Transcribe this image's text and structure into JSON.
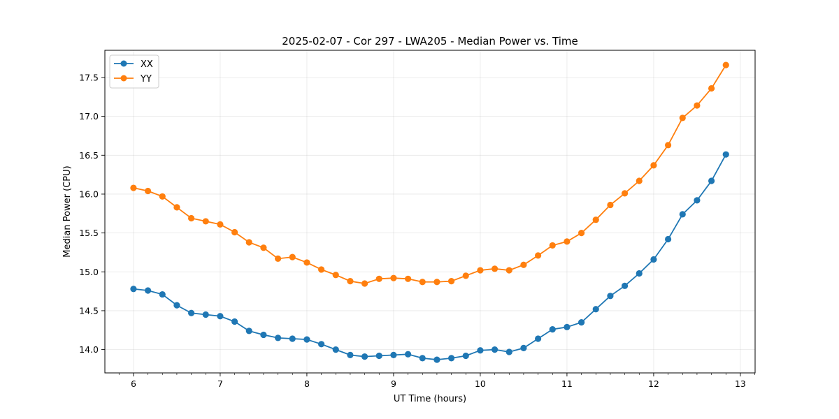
{
  "chart_data": {
    "type": "line",
    "title": "2025-02-07 - Cor 297 - LWA205 - Median Power vs. Time",
    "xlabel": "UT Time (hours)",
    "ylabel": "Median Power (CPU)",
    "xlim": [
      5.67,
      13.17
    ],
    "ylim": [
      13.7,
      17.85
    ],
    "xticks": [
      6,
      7,
      8,
      9,
      10,
      11,
      12,
      13
    ],
    "yticks": [
      14.0,
      14.5,
      15.0,
      15.5,
      16.0,
      16.5,
      17.0,
      17.5
    ],
    "ytick_labels": [
      "14.0",
      "14.5",
      "15.0",
      "15.5",
      "16.0",
      "16.5",
      "17.0",
      "17.5"
    ],
    "grid": true,
    "legend_position": "top-left",
    "x": [
      6.0,
      6.1667,
      6.3333,
      6.5,
      6.6667,
      6.8333,
      7.0,
      7.1667,
      7.3333,
      7.5,
      7.6667,
      7.8333,
      8.0,
      8.1667,
      8.3333,
      8.5,
      8.6667,
      8.8333,
      9.0,
      9.1667,
      9.3333,
      9.5,
      9.6667,
      9.8333,
      10.0,
      10.1667,
      10.3333,
      10.5,
      10.6667,
      10.8333,
      11.0,
      11.1667,
      11.3333,
      11.5,
      11.6667,
      11.8333,
      12.0,
      12.1667,
      12.3333,
      12.5,
      12.6667,
      12.8333
    ],
    "series": [
      {
        "name": "XX",
        "color": "#1f77b4",
        "values": [
          14.78,
          14.76,
          14.71,
          14.57,
          14.47,
          14.45,
          14.43,
          14.36,
          14.24,
          14.19,
          14.15,
          14.14,
          14.13,
          14.07,
          14.0,
          13.93,
          13.91,
          13.92,
          13.93,
          13.94,
          13.89,
          13.87,
          13.89,
          13.92,
          13.99,
          14.0,
          13.97,
          14.02,
          14.14,
          14.26,
          14.29,
          14.35,
          14.52,
          14.69,
          14.82,
          14.98,
          15.16,
          15.42,
          15.74,
          15.92,
          16.17,
          16.51
        ]
      },
      {
        "name": "YY",
        "color": "#ff7f0e",
        "values": [
          16.08,
          16.04,
          15.97,
          15.83,
          15.69,
          15.65,
          15.61,
          15.51,
          15.38,
          15.31,
          15.17,
          15.19,
          15.12,
          15.03,
          14.96,
          14.88,
          14.85,
          14.91,
          14.92,
          14.91,
          14.87,
          14.87,
          14.88,
          14.95,
          15.02,
          15.04,
          15.02,
          15.09,
          15.21,
          15.34,
          15.39,
          15.5,
          15.67,
          15.86,
          16.01,
          16.17,
          16.37,
          16.63,
          16.98,
          17.14,
          17.36,
          17.66
        ]
      }
    ]
  }
}
